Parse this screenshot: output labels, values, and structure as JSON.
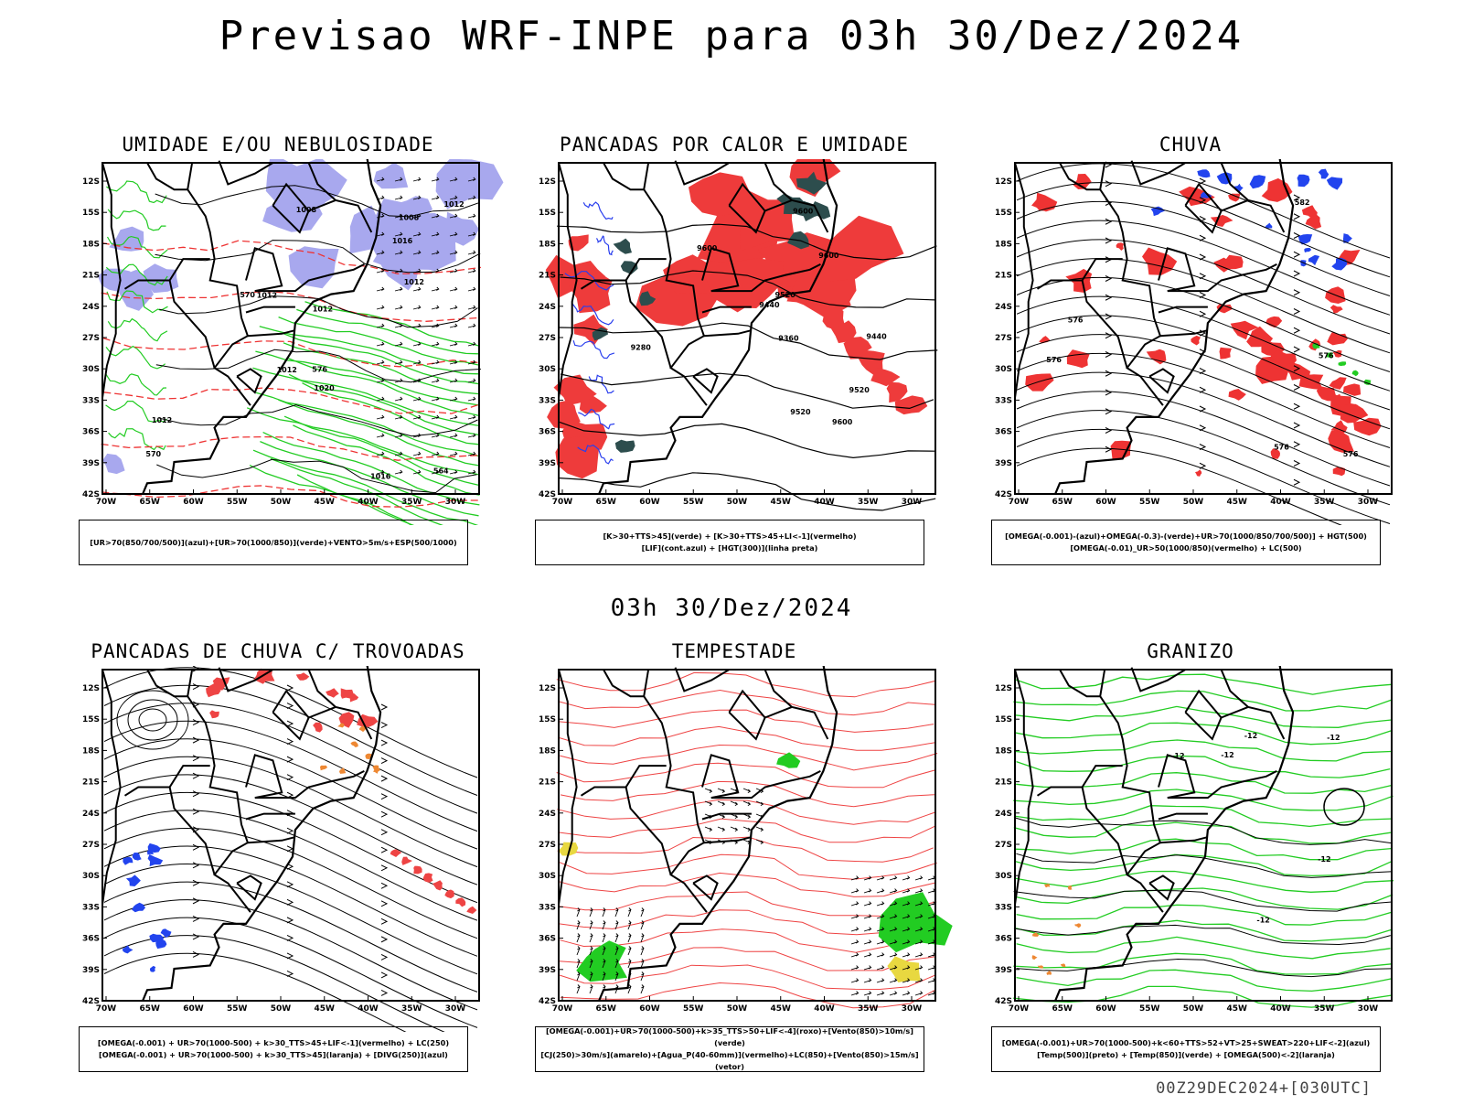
{
  "title": "Previsao WRF-INPE  para 03h 30/Dez/2024",
  "mid_date": "03h 30/Dez/2024",
  "footer": "00Z29DEC2024+[030UTC]",
  "lat_labels": [
    "12S",
    "15S",
    "18S",
    "21S",
    "24S",
    "27S",
    "30S",
    "33S",
    "36S",
    "39S",
    "42S"
  ],
  "lon_labels": [
    "70W",
    "65W",
    "60W",
    "55W",
    "50W",
    "45W",
    "40W",
    "35W",
    "30W"
  ],
  "panels": [
    {
      "title": "UMIDADE E/OU NEBULOSIDADE",
      "legend": [
        "[UR>70(850/700/500)](azul)+[UR>70(1000/850)](verde)+VENTO>5m/s+ESP(500/1000)"
      ],
      "contour_labels": [
        "1012",
        "1012",
        "1012",
        "1020",
        "1008",
        "1008",
        "1012",
        "1016",
        "1012",
        "576",
        "570",
        "564",
        "570",
        "1016",
        "1012"
      ],
      "colors": {
        "blue_fill": "#a8a8ee",
        "green": "#22cc22",
        "red": "#ee3333"
      }
    },
    {
      "title": "PANCADAS POR CALOR E UMIDADE",
      "legend": [
        "[K>30+TTS>45](verde) + [K>30+TTS>45+LI<-1](vermelho)",
        "[LIF](cont.azul) + [HGT(300)](linha preta)"
      ],
      "contour_labels": [
        "9600",
        "9600",
        "9600",
        "9520",
        "9520",
        "9520",
        "9440",
        "9440",
        "9360",
        "9280",
        "9600"
      ],
      "colors": {
        "red": "#ee3b3b",
        "dark_green": "#2d4d4d",
        "blue": "#2a3fee"
      }
    },
    {
      "title": "CHUVA",
      "legend": [
        "[OMEGA(-0.001)-(azul)+OMEGA(-0.3)-(verde)+UR>70(1000/850/700/500)] + HGT(500)",
        "[OMEGA(-0.01)_UR>50(1000/850)(vermelho) + LC(500)"
      ],
      "contour_labels": [
        "582",
        "576",
        "576",
        "576",
        "576",
        "576"
      ],
      "colors": {
        "red": "#ee3333",
        "blue": "#2244ee",
        "green": "#22cc22"
      }
    },
    {
      "title": "PANCADAS DE CHUVA C/ TROVOADAS",
      "legend": [
        "[OMEGA(-0.001) + UR>70(1000-500) + k>30_TTS>45+LIF<-1](vermelho) + LC(250)",
        "[OMEGA(-0.001) + UR>70(1000-500) + k>30_TTS>45](laranja) + [DIVG(250)](azul)"
      ],
      "contour_labels": [],
      "colors": {
        "red": "#ee4444",
        "orange": "#ee8833",
        "blue": "#2244ee"
      }
    },
    {
      "title": "TEMPESTADE",
      "legend": [
        "[OMEGA(-0.001)+UR>70(1000-500)+k>35_TTS>50+LIF<-4](roxo)+[Vento(850)>10m/s](verde)",
        "[CJ(250)>30m/s](amarelo)+[Agua_P(40-60mm)](vermelho)+LC(850)+[Vento(850)>15m/s](vetor)"
      ],
      "contour_labels": [],
      "colors": {
        "red": "#ee4444",
        "green": "#22cc22",
        "yellow": "#e8d840"
      }
    },
    {
      "title": "GRANIZO",
      "legend": [
        "[OMEGA(-0.001)+UR>70(1000-500)+k<60+TTS>52+VT>25+SWEAT>220+LIF<-2](azul)",
        "[Temp(500)](preto) + [Temp(850)](verde) + [OMEGA(500)<-2](laranja)"
      ],
      "contour_labels": [
        "-12",
        "-12",
        "-12",
        "-12",
        "-12",
        "-12"
      ],
      "colors": {
        "green": "#22cc22",
        "orange": "#ee8833"
      }
    }
  ]
}
